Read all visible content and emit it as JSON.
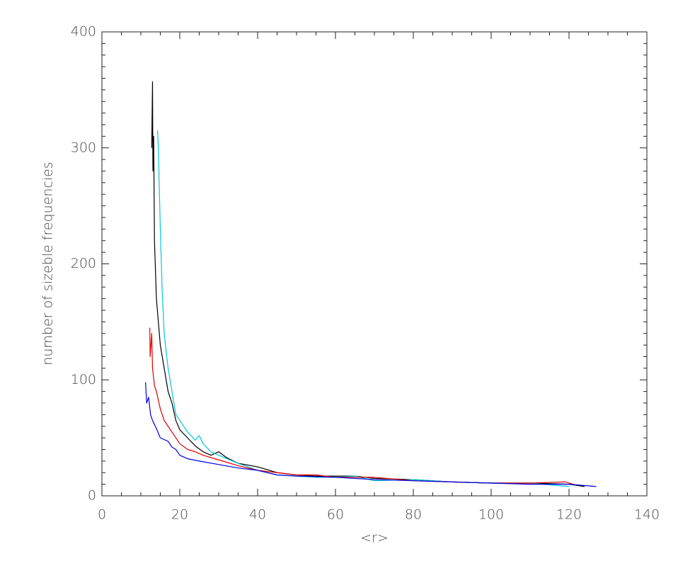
{
  "chart_data": {
    "type": "line",
    "xlabel": "<r>",
    "ylabel": "number of sizeble frequencies",
    "xlim": [
      0,
      140
    ],
    "xticks": [
      0,
      20,
      40,
      60,
      80,
      100,
      120,
      140
    ],
    "ylim": [
      0,
      400
    ],
    "yticks": [
      0,
      100,
      200,
      300,
      400
    ],
    "xminorticks": [
      5,
      10,
      15,
      25,
      30,
      35,
      45,
      50,
      55,
      65,
      70,
      75,
      85,
      90,
      95,
      105,
      110,
      115,
      125,
      130,
      135
    ],
    "yminorticks": [
      10,
      20,
      30,
      40,
      50,
      60,
      70,
      80,
      90,
      110,
      120,
      130,
      140,
      150,
      160,
      170,
      180,
      190,
      210,
      220,
      230,
      240,
      250,
      260,
      270,
      280,
      290,
      310,
      320,
      330,
      340,
      350,
      360,
      370,
      380,
      390
    ],
    "series": [
      {
        "color": "#000000",
        "x": [
          12.8,
          13,
          13.1,
          13.3,
          13.5,
          14,
          14.5,
          15,
          16,
          17,
          18,
          19,
          20,
          22,
          24,
          26,
          28,
          30,
          32,
          35,
          40,
          45,
          50,
          55,
          60,
          65,
          70,
          80,
          90,
          100,
          110,
          120,
          124
        ],
        "values": [
          300,
          357,
          280,
          310,
          220,
          170,
          150,
          130,
          110,
          90,
          80,
          65,
          57,
          50,
          43,
          38,
          35,
          38,
          33,
          28,
          25,
          20,
          18,
          17,
          17,
          17,
          15,
          14,
          12,
          11,
          11,
          10,
          8
        ]
      },
      {
        "color": "#00c8d8",
        "x": [
          14.3,
          14.5,
          15,
          15.5,
          16,
          17,
          18,
          19,
          20,
          22,
          24,
          25,
          26,
          28,
          30,
          35,
          40,
          45,
          50,
          55,
          60,
          65,
          70,
          80,
          90,
          100,
          110,
          120
        ],
        "values": [
          315,
          300,
          230,
          175,
          140,
          110,
          90,
          70,
          65,
          55,
          48,
          52,
          45,
          38,
          35,
          28,
          22,
          18,
          17,
          16,
          16,
          17,
          13,
          14,
          12,
          11,
          11,
          8
        ]
      },
      {
        "color": "#e00000",
        "x": [
          12.3,
          12.4,
          12.8,
          13,
          13.5,
          14,
          15,
          16,
          17,
          18,
          20,
          22,
          24,
          26,
          30,
          35,
          40,
          45,
          50,
          55,
          60,
          70,
          80,
          90,
          100,
          110,
          119,
          122
        ],
        "values": [
          145,
          120,
          140,
          110,
          95,
          90,
          75,
          65,
          60,
          55,
          45,
          40,
          38,
          35,
          31,
          26,
          22,
          20,
          18,
          18,
          16,
          16,
          13,
          12,
          11,
          11,
          12,
          9
        ]
      },
      {
        "color": "#0000e0",
        "x": [
          11.2,
          11.5,
          12,
          12.5,
          13,
          14,
          15,
          17,
          18,
          19,
          20,
          22,
          25,
          30,
          35,
          40,
          45,
          50,
          60,
          70,
          80,
          90,
          100,
          110,
          120,
          127
        ],
        "values": [
          98,
          80,
          85,
          70,
          65,
          58,
          50,
          47,
          42,
          40,
          35,
          32,
          30,
          27,
          24,
          22,
          18,
          17,
          16,
          14,
          13,
          12,
          11,
          10,
          10,
          8
        ]
      }
    ]
  }
}
